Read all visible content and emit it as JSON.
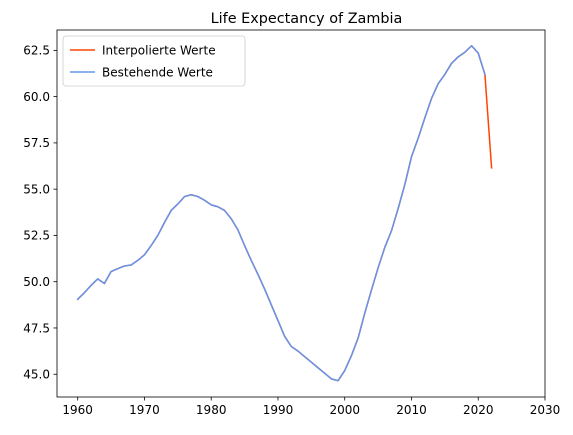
{
  "chart_data": {
    "type": "line",
    "title": "Life Expectancy of Zambia",
    "xlabel": "",
    "ylabel": "",
    "xlim": [
      1956.9,
      2030
    ],
    "ylim": [
      43.77,
      63.6
    ],
    "xticks": [
      1960,
      1970,
      1980,
      1990,
      2000,
      2010,
      2020,
      2030
    ],
    "yticks": [
      45.0,
      47.5,
      50.0,
      52.5,
      55.0,
      57.5,
      60.0,
      62.5
    ],
    "ytick_labels": [
      "45.0",
      "47.5",
      "50.0",
      "52.5",
      "55.0",
      "57.5",
      "60.0",
      "62.5"
    ],
    "grid": false,
    "legend_position": "top-left",
    "series": [
      {
        "name": "Interpolierte Werte",
        "color": "#ff4500",
        "x": [
          1960,
          1961,
          1962,
          1963,
          1964,
          1965,
          1966,
          1967,
          1968,
          1969,
          1970,
          1971,
          1972,
          1973,
          1974,
          1975,
          1976,
          1977,
          1978,
          1979,
          1980,
          1981,
          1982,
          1983,
          1984,
          1985,
          1986,
          1987,
          1988,
          1989,
          1990,
          1991,
          1992,
          1993,
          1994,
          1995,
          1996,
          1997,
          1998,
          1999,
          2000,
          2001,
          2002,
          2003,
          2004,
          2005,
          2006,
          2007,
          2008,
          2009,
          2010,
          2011,
          2012,
          2013,
          2014,
          2015,
          2016,
          2017,
          2018,
          2019,
          2020,
          2021,
          2022
        ],
        "values": [
          49.05,
          49.4,
          49.8,
          50.15,
          49.9,
          50.55,
          50.7,
          50.85,
          50.9,
          51.15,
          51.45,
          51.95,
          52.5,
          53.2,
          53.85,
          54.2,
          54.6,
          54.7,
          54.6,
          54.4,
          54.15,
          54.05,
          53.85,
          53.4,
          52.8,
          51.95,
          51.15,
          50.4,
          49.6,
          48.75,
          47.9,
          47.05,
          46.5,
          46.25,
          45.95,
          45.65,
          45.35,
          45.05,
          44.75,
          44.65,
          45.2,
          46.0,
          46.95,
          48.3,
          49.55,
          50.75,
          51.85,
          52.75,
          53.95,
          55.25,
          56.75,
          57.75,
          58.85,
          59.9,
          60.7,
          61.2,
          61.8,
          62.15,
          62.4,
          62.75,
          62.35,
          61.2,
          56.15
        ]
      },
      {
        "name": "Bestehende Werte",
        "color": "#6495ed",
        "x": [
          1960,
          1961,
          1962,
          1963,
          1964,
          1965,
          1966,
          1967,
          1968,
          1969,
          1970,
          1971,
          1972,
          1973,
          1974,
          1975,
          1976,
          1977,
          1978,
          1979,
          1980,
          1981,
          1982,
          1983,
          1984,
          1985,
          1986,
          1987,
          1988,
          1989,
          1990,
          1991,
          1992,
          1993,
          1994,
          1995,
          1996,
          1997,
          1998,
          1999,
          2000,
          2001,
          2002,
          2003,
          2004,
          2005,
          2006,
          2007,
          2008,
          2009,
          2010,
          2011,
          2012,
          2013,
          2014,
          2015,
          2016,
          2017,
          2018,
          2019,
          2020,
          2021
        ],
        "values": [
          49.05,
          49.4,
          49.8,
          50.15,
          49.9,
          50.55,
          50.7,
          50.85,
          50.9,
          51.15,
          51.45,
          51.95,
          52.5,
          53.2,
          53.85,
          54.2,
          54.6,
          54.7,
          54.6,
          54.4,
          54.15,
          54.05,
          53.85,
          53.4,
          52.8,
          51.95,
          51.15,
          50.4,
          49.6,
          48.75,
          47.9,
          47.05,
          46.5,
          46.25,
          45.95,
          45.65,
          45.35,
          45.05,
          44.75,
          44.65,
          45.2,
          46.0,
          46.95,
          48.3,
          49.55,
          50.75,
          51.85,
          52.75,
          53.95,
          55.25,
          56.75,
          57.75,
          58.85,
          59.9,
          60.7,
          61.2,
          61.8,
          62.15,
          62.4,
          62.75,
          62.35,
          61.2
        ]
      }
    ]
  }
}
